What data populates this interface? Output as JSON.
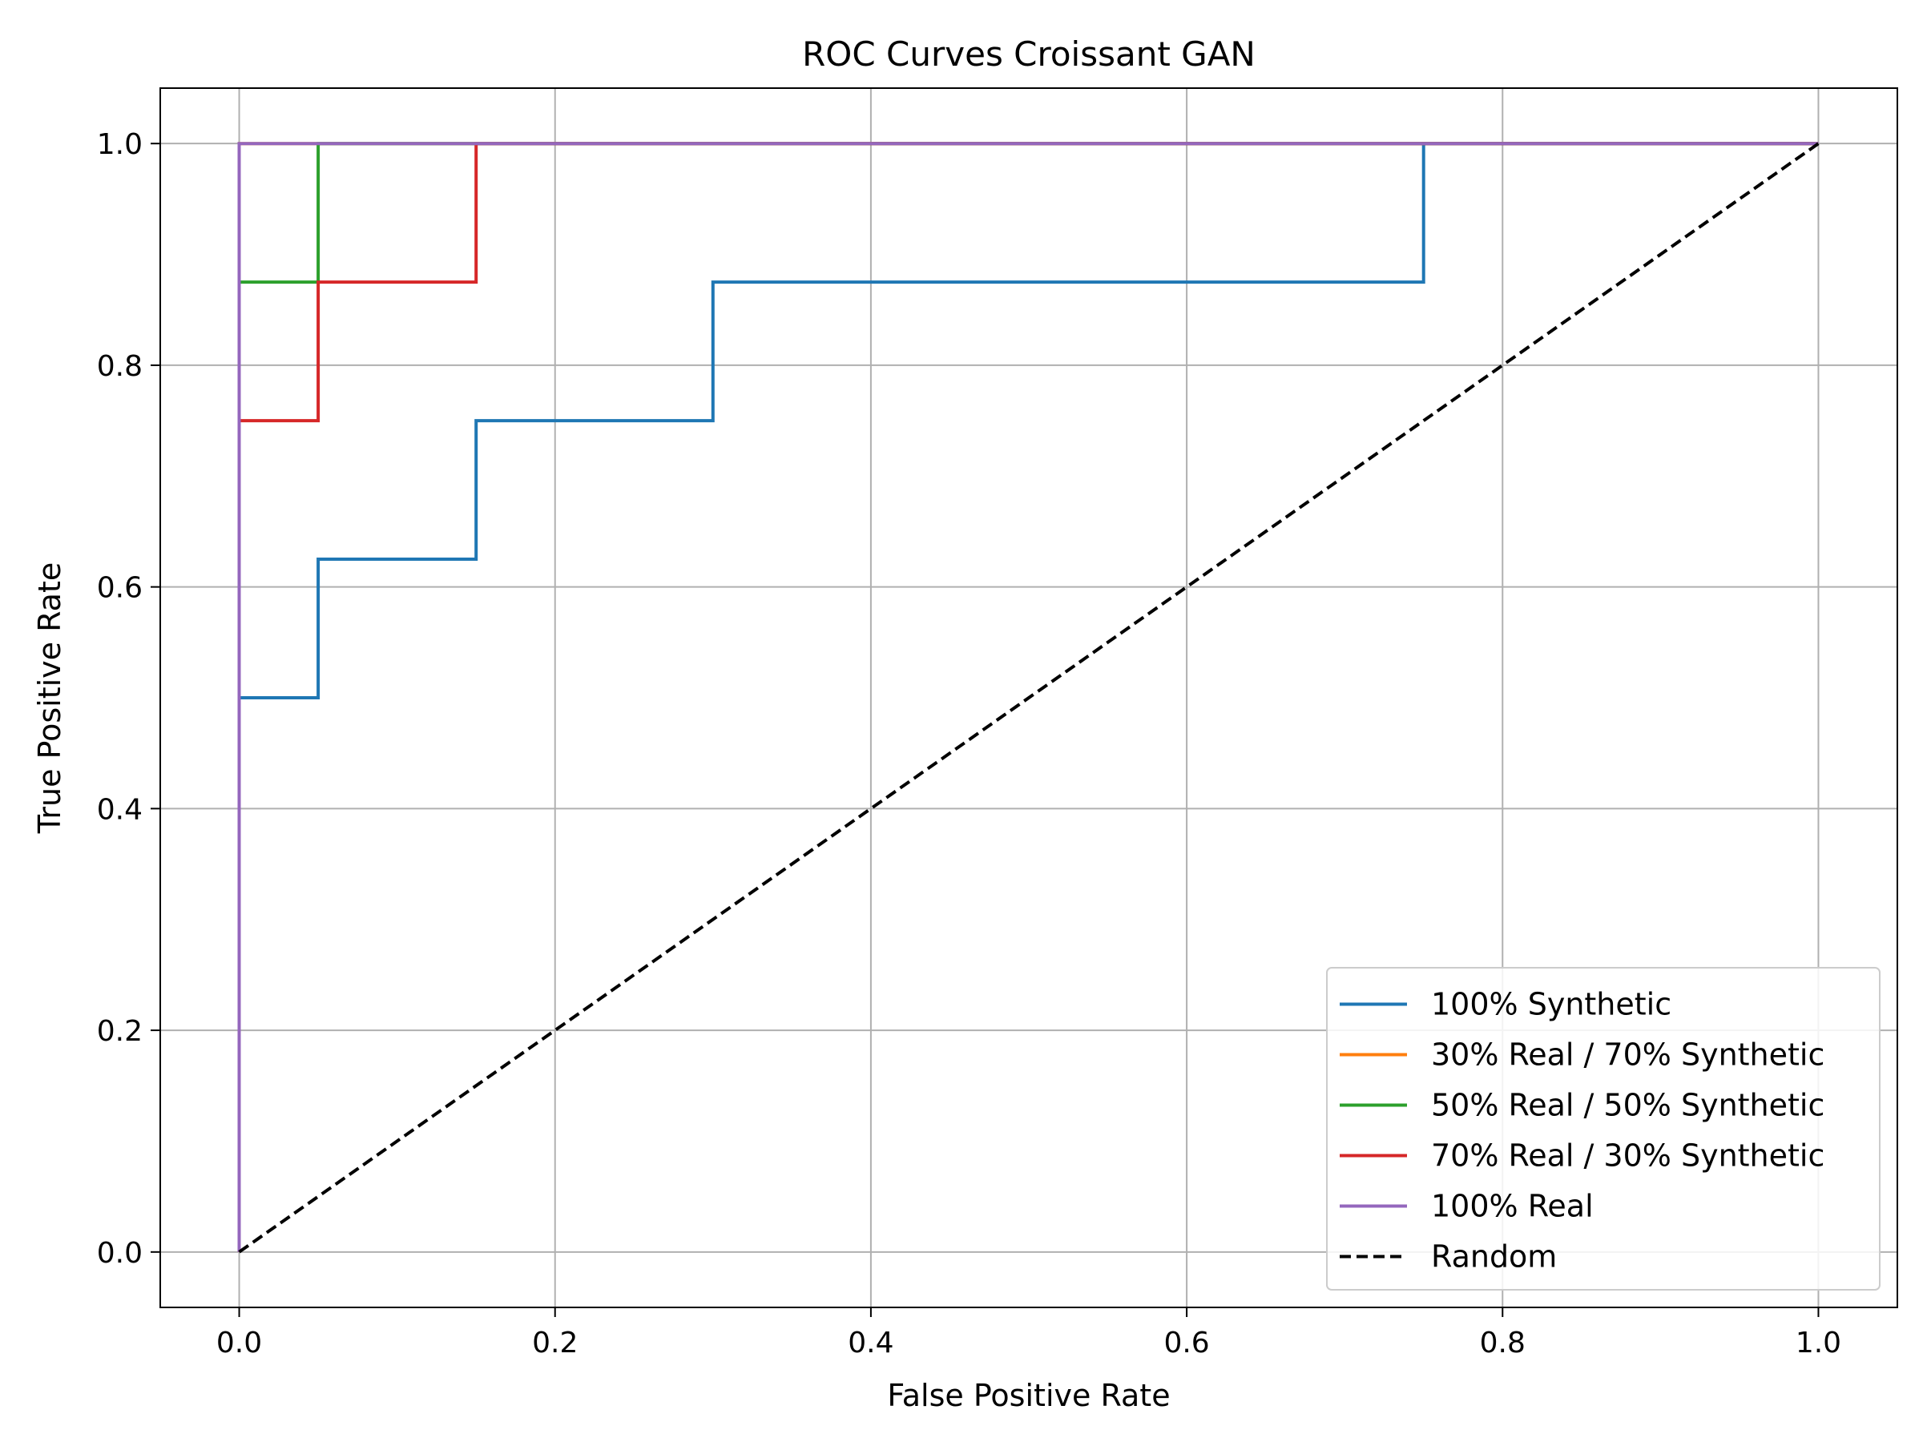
{
  "chart_data": {
    "type": "line",
    "title": "ROC Curves Croissant GAN",
    "xlabel": "False Positive Rate",
    "ylabel": "True Positive Rate",
    "xlim": [
      -0.05,
      1.05
    ],
    "ylim": [
      -0.05,
      1.05
    ],
    "xticks": [
      0.0,
      0.2,
      0.4,
      0.6,
      0.8,
      1.0
    ],
    "yticks": [
      0.0,
      0.2,
      0.4,
      0.6,
      0.8,
      1.0
    ],
    "xtick_labels": [
      "0.0",
      "0.2",
      "0.4",
      "0.6",
      "0.8",
      "1.0"
    ],
    "ytick_labels": [
      "0.0",
      "0.2",
      "0.4",
      "0.6",
      "0.8",
      "1.0"
    ],
    "grid": true,
    "legend_position": "lower-right",
    "series": [
      {
        "name": "100% Synthetic",
        "color": "#1f77b4",
        "style": "solid",
        "x": [
          0.0,
          0.0,
          0.05,
          0.05,
          0.15,
          0.15,
          0.3,
          0.3,
          0.75,
          0.75,
          1.0
        ],
        "y": [
          0.0,
          0.5,
          0.5,
          0.625,
          0.625,
          0.75,
          0.75,
          0.875,
          0.875,
          1.0,
          1.0
        ]
      },
      {
        "name": "30% Real / 70% Synthetic",
        "color": "#ff7f0e",
        "style": "solid",
        "x": [
          0.0,
          0.0,
          1.0
        ],
        "y": [
          0.0,
          1.0,
          1.0
        ]
      },
      {
        "name": "50% Real / 50% Synthetic",
        "color": "#2ca02c",
        "style": "solid",
        "x": [
          0.0,
          0.0,
          0.05,
          0.05,
          1.0
        ],
        "y": [
          0.0,
          0.875,
          0.875,
          1.0,
          1.0
        ]
      },
      {
        "name": "70% Real / 30% Synthetic",
        "color": "#d62728",
        "style": "solid",
        "x": [
          0.0,
          0.0,
          0.05,
          0.05,
          0.15,
          0.15,
          1.0
        ],
        "y": [
          0.0,
          0.75,
          0.75,
          0.875,
          0.875,
          1.0,
          1.0
        ]
      },
      {
        "name": "100% Real",
        "color": "#9467bd",
        "style": "solid",
        "x": [
          0.0,
          0.0,
          1.0
        ],
        "y": [
          0.0,
          1.0,
          1.0
        ]
      },
      {
        "name": "Random",
        "color": "#000000",
        "style": "dashed",
        "x": [
          0.0,
          1.0
        ],
        "y": [
          0.0,
          1.0
        ]
      }
    ]
  }
}
